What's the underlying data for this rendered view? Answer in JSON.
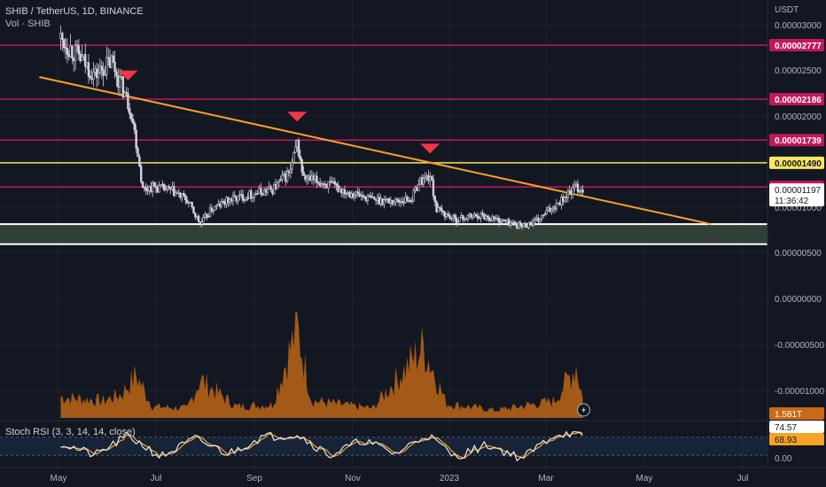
{
  "legend": {
    "title": "SHIB / TetherUS, 1D, BINANCE",
    "volume": "Vol · SHIB"
  },
  "colors": {
    "background": "#131722",
    "candle": "#d1d4dc",
    "trendline": "#f7a325",
    "resistance": "#c2185b",
    "support_box": "#37483b",
    "volume": "#c86a16",
    "rsi_k": "#e8e8e8",
    "rsi_d": "#f7a325",
    "marker": "#f23645"
  },
  "chart_data": {
    "type": "candlestick",
    "currency_label": "USDT",
    "y_tick_labels": [
      "0.00003000",
      "0.00002500",
      "0.00002000",
      "0.00001500",
      "0.00001000",
      "0.00000500",
      "0.00000000",
      "-0.00000500",
      "-0.00001000"
    ],
    "x_tick_labels": [
      "May",
      "Jul",
      "Sep",
      "Nov",
      "2023",
      "Mar",
      "May",
      "Jul"
    ],
    "ylim": [
      -1.14e-05,
      3.05e-05
    ],
    "price_levels": [
      {
        "label": "0.00002777",
        "value": 2.777e-05,
        "color": "#c2185b"
      },
      {
        "label": "0.00002186",
        "value": 2.186e-05,
        "color": "#c2185b"
      },
      {
        "label": "0.00001739",
        "value": 1.739e-05,
        "color": "#c2185b"
      },
      {
        "label": "0.00001490",
        "value": 1.49e-05,
        "color": "#f5e663"
      },
      {
        "label": "0.00001226",
        "value": 1.226e-05,
        "color": "#c2185b"
      }
    ],
    "current_price": {
      "label": "0.00001197",
      "countdown": "11:36:42"
    },
    "support_zone": [
      6e-06,
      8.2e-06
    ],
    "trendline": {
      "start": [
        "2022-03-25",
        2.39e-05
      ],
      "end": [
        "2023-04-25",
        8.2e-06
      ]
    },
    "peak_markers": [
      "2022-05-05",
      "2022-08-16",
      "2022-11-05"
    ],
    "price_path": [
      [
        "2022-03-25",
        2.85e-05
      ],
      [
        "2022-04-05",
        2.65e-05
      ],
      [
        "2022-04-15",
        2.45e-05
      ],
      [
        "2022-04-25",
        2.6e-05
      ],
      [
        "2022-05-03",
        2.25e-05
      ],
      [
        "2022-05-07",
        2.05e-05
      ],
      [
        "2022-05-11",
        1.6e-05
      ],
      [
        "2022-05-14",
        1.2e-05
      ],
      [
        "2022-05-20",
        1.23e-05
      ],
      [
        "2022-06-01",
        1.18e-05
      ],
      [
        "2022-06-10",
        1.08e-05
      ],
      [
        "2022-06-18",
        8.2e-06
      ],
      [
        "2022-06-25",
        9.8e-06
      ],
      [
        "2022-07-05",
        1.08e-05
      ],
      [
        "2022-07-20",
        1.15e-05
      ],
      [
        "2022-08-01",
        1.2e-05
      ],
      [
        "2022-08-12",
        1.4e-05
      ],
      [
        "2022-08-16",
        1.7e-05
      ],
      [
        "2022-08-20",
        1.32e-05
      ],
      [
        "2022-09-01",
        1.27e-05
      ],
      [
        "2022-09-15",
        1.18e-05
      ],
      [
        "2022-10-01",
        1.09e-05
      ],
      [
        "2022-10-15",
        1.07e-05
      ],
      [
        "2022-10-25",
        1.1e-05
      ],
      [
        "2022-10-29",
        1.28e-05
      ],
      [
        "2022-11-05",
        1.35e-05
      ],
      [
        "2022-11-09",
        9.8e-06
      ],
      [
        "2022-11-20",
        8.7e-06
      ],
      [
        "2022-12-05",
        9.2e-06
      ],
      [
        "2022-12-20",
        8.5e-06
      ],
      [
        "2022-12-31",
        8e-06
      ],
      [
        "2023-01-10",
        8.6e-06
      ],
      [
        "2023-01-20",
        1.03e-05
      ],
      [
        "2023-01-28",
        1.15e-05
      ],
      [
        "2023-02-02",
        1.22e-05
      ],
      [
        "2023-02-06",
        1.19e-05
      ]
    ],
    "volume_path": [
      [
        "2022-03-25",
        0.22
      ],
      [
        "2022-04-20",
        0.18
      ],
      [
        "2022-05-01",
        0.25
      ],
      [
        "2022-05-10",
        0.45
      ],
      [
        "2022-05-20",
        0.12
      ],
      [
        "2022-06-10",
        0.1
      ],
      [
        "2022-06-18",
        0.4
      ],
      [
        "2022-07-10",
        0.12
      ],
      [
        "2022-08-01",
        0.14
      ],
      [
        "2022-08-16",
        0.95
      ],
      [
        "2022-08-25",
        0.18
      ],
      [
        "2022-10-01",
        0.1
      ],
      [
        "2022-11-01",
        0.75
      ],
      [
        "2022-11-15",
        0.15
      ],
      [
        "2022-12-15",
        0.08
      ],
      [
        "2023-01-20",
        0.18
      ],
      [
        "2023-02-02",
        0.55
      ],
      [
        "2023-02-06",
        0.2
      ]
    ],
    "volume_last": "1.581T",
    "rsi": {
      "title": "Stoch RSI (3, 3, 14, 14, close)",
      "k_value": "74.57",
      "d_value": "68.93",
      "axis_label": "0.00",
      "band": [
        20,
        80
      ],
      "k_path": [
        [
          "2022-03-25",
          60
        ],
        [
          "2022-04-15",
          20
        ],
        [
          "2022-05-05",
          85
        ],
        [
          "2022-05-25",
          15
        ],
        [
          "2022-06-15",
          75
        ],
        [
          "2022-07-05",
          25
        ],
        [
          "2022-07-25",
          80
        ],
        [
          "2022-08-16",
          90
        ],
        [
          "2022-09-05",
          20
        ],
        [
          "2022-09-25",
          70
        ],
        [
          "2022-10-15",
          25
        ],
        [
          "2022-11-03",
          90
        ],
        [
          "2022-11-20",
          15
        ],
        [
          "2022-12-10",
          55
        ],
        [
          "2022-12-31",
          10
        ],
        [
          "2023-01-20",
          90
        ],
        [
          "2023-02-01",
          95
        ],
        [
          "2023-02-06",
          74.57
        ]
      ]
    }
  }
}
